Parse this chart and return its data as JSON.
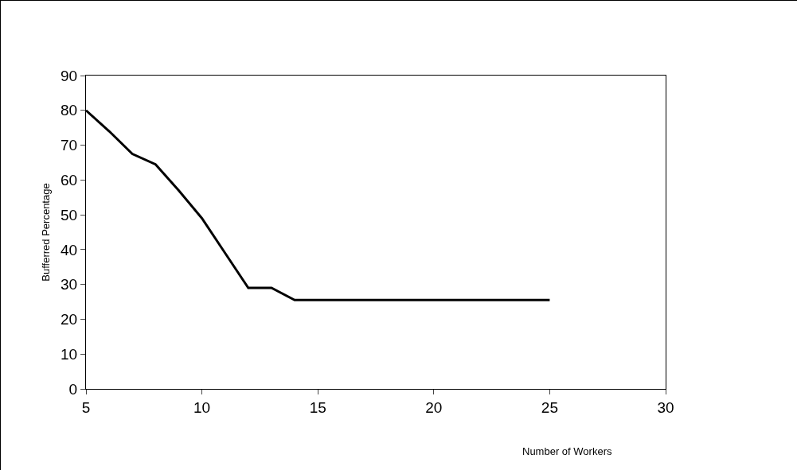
{
  "chart_data": {
    "type": "line",
    "xlabel": "Number of Workers",
    "ylabel": "Bufferred Percentage",
    "x": [
      5,
      6,
      7,
      8,
      9,
      10,
      11,
      12,
      13,
      14,
      15,
      16,
      17,
      18,
      19,
      20,
      21,
      22,
      23,
      24,
      25
    ],
    "series": [
      {
        "color": "#000000",
        "values": [
          80,
          74,
          67.5,
          64.5,
          57,
          49,
          39,
          29,
          29,
          25.5,
          25.5,
          25.5,
          25.5,
          25.5,
          25.5,
          25.5,
          25.5,
          25.5,
          25.5,
          25.5,
          25.5
        ]
      }
    ],
    "xlim": [
      5,
      30
    ],
    "xticks": [
      5,
      10,
      15,
      20,
      25,
      30
    ],
    "ylim": [
      0,
      90
    ],
    "yticks": [
      0,
      10,
      20,
      30,
      40,
      50,
      60,
      70,
      80,
      90
    ],
    "grid": false,
    "marker": "none",
    "line_style": "solid"
  }
}
